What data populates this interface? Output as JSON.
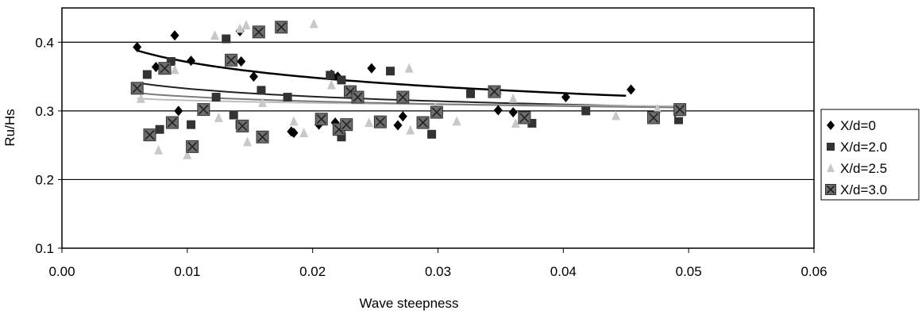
{
  "chart_data": {
    "type": "scatter",
    "xlabel": "Wave steepness",
    "ylabel": "Ru/Hs",
    "xlim": [
      0.0,
      0.06
    ],
    "ylim": [
      0.1,
      0.45
    ],
    "x_ticks": [
      0.0,
      0.01,
      0.02,
      0.03,
      0.04,
      0.05,
      0.06
    ],
    "x_tick_labels": [
      "0.00",
      "0.01",
      "0.02",
      "0.03",
      "0.04",
      "0.05",
      "0.06"
    ],
    "y_ticks": [
      0.1,
      0.2,
      0.3,
      0.4
    ],
    "y_tick_labels": [
      "0.1",
      "0.2",
      "0.3",
      "0.4"
    ],
    "horizontal_grid": true,
    "legend_position": "right",
    "series": [
      {
        "name": "X/d=0",
        "marker": "diamond",
        "color": "#000000",
        "trend": [
          0.006,
          0.045,
          0.388,
          0.322
        ],
        "points": [
          [
            0.006,
            0.393
          ],
          [
            0.0075,
            0.364
          ],
          [
            0.009,
            0.41
          ],
          [
            0.0093,
            0.3
          ],
          [
            0.0103,
            0.373
          ],
          [
            0.0142,
            0.416
          ],
          [
            0.0143,
            0.372
          ],
          [
            0.0153,
            0.35
          ],
          [
            0.0183,
            0.27
          ],
          [
            0.0185,
            0.268
          ],
          [
            0.0205,
            0.28
          ],
          [
            0.0215,
            0.353
          ],
          [
            0.0218,
            0.283
          ],
          [
            0.022,
            0.35
          ],
          [
            0.0247,
            0.362
          ],
          [
            0.0268,
            0.279
          ],
          [
            0.0272,
            0.292
          ],
          [
            0.0348,
            0.301
          ],
          [
            0.036,
            0.298
          ],
          [
            0.0402,
            0.32
          ],
          [
            0.0454,
            0.331
          ]
        ]
      },
      {
        "name": "X/d=2.0",
        "marker": "square",
        "color": "#333333",
        "trend": [
          0.006,
          0.049,
          0.341,
          0.306
        ],
        "points": [
          [
            0.0068,
            0.353
          ],
          [
            0.0078,
            0.273
          ],
          [
            0.0083,
            0.363
          ],
          [
            0.0087,
            0.372
          ],
          [
            0.0103,
            0.28
          ],
          [
            0.0112,
            0.3
          ],
          [
            0.0123,
            0.32
          ],
          [
            0.0131,
            0.405
          ],
          [
            0.0137,
            0.294
          ],
          [
            0.0142,
            0.28
          ],
          [
            0.0159,
            0.33
          ],
          [
            0.018,
            0.32
          ],
          [
            0.0214,
            0.352
          ],
          [
            0.0223,
            0.345
          ],
          [
            0.0223,
            0.262
          ],
          [
            0.0262,
            0.358
          ],
          [
            0.0295,
            0.266
          ],
          [
            0.0326,
            0.325
          ],
          [
            0.0375,
            0.282
          ],
          [
            0.0418,
            0.3
          ],
          [
            0.0492,
            0.287
          ]
        ]
      },
      {
        "name": "X/d=2.5",
        "marker": "triangle",
        "color": "#c8c8c8",
        "trend": [
          0.006,
          0.049,
          0.318,
          0.307
        ],
        "points": [
          [
            0.0063,
            0.318
          ],
          [
            0.0077,
            0.243
          ],
          [
            0.009,
            0.36
          ],
          [
            0.01,
            0.236
          ],
          [
            0.0122,
            0.41
          ],
          [
            0.0125,
            0.29
          ],
          [
            0.0142,
            0.42
          ],
          [
            0.0147,
            0.425
          ],
          [
            0.0148,
            0.255
          ],
          [
            0.016,
            0.312
          ],
          [
            0.0185,
            0.285
          ],
          [
            0.0193,
            0.268
          ],
          [
            0.0201,
            0.427
          ],
          [
            0.0215,
            0.338
          ],
          [
            0.0245,
            0.283
          ],
          [
            0.0277,
            0.362
          ],
          [
            0.0278,
            0.272
          ],
          [
            0.0298,
            0.305
          ],
          [
            0.0315,
            0.285
          ],
          [
            0.0348,
            0.33
          ],
          [
            0.036,
            0.318
          ],
          [
            0.0362,
            0.282
          ],
          [
            0.0442,
            0.293
          ],
          [
            0.0475,
            0.303
          ],
          [
            0.0493,
            0.297
          ]
        ]
      },
      {
        "name": "X/d=3.0",
        "marker": "square-x",
        "color": "#6e6e6e",
        "trend": [
          0.006,
          0.049,
          0.326,
          0.305
        ],
        "points": [
          [
            0.006,
            0.333
          ],
          [
            0.007,
            0.265
          ],
          [
            0.0082,
            0.362
          ],
          [
            0.0088,
            0.283
          ],
          [
            0.0104,
            0.248
          ],
          [
            0.0113,
            0.302
          ],
          [
            0.0135,
            0.374
          ],
          [
            0.0144,
            0.278
          ],
          [
            0.0157,
            0.415
          ],
          [
            0.016,
            0.262
          ],
          [
            0.0175,
            0.422
          ],
          [
            0.0207,
            0.288
          ],
          [
            0.0221,
            0.273
          ],
          [
            0.0227,
            0.28
          ],
          [
            0.023,
            0.328
          ],
          [
            0.0236,
            0.32
          ],
          [
            0.0254,
            0.284
          ],
          [
            0.0272,
            0.32
          ],
          [
            0.0288,
            0.283
          ],
          [
            0.0299,
            0.298
          ],
          [
            0.0345,
            0.328
          ],
          [
            0.0369,
            0.29
          ],
          [
            0.0472,
            0.29
          ],
          [
            0.0493,
            0.302
          ]
        ]
      }
    ]
  }
}
